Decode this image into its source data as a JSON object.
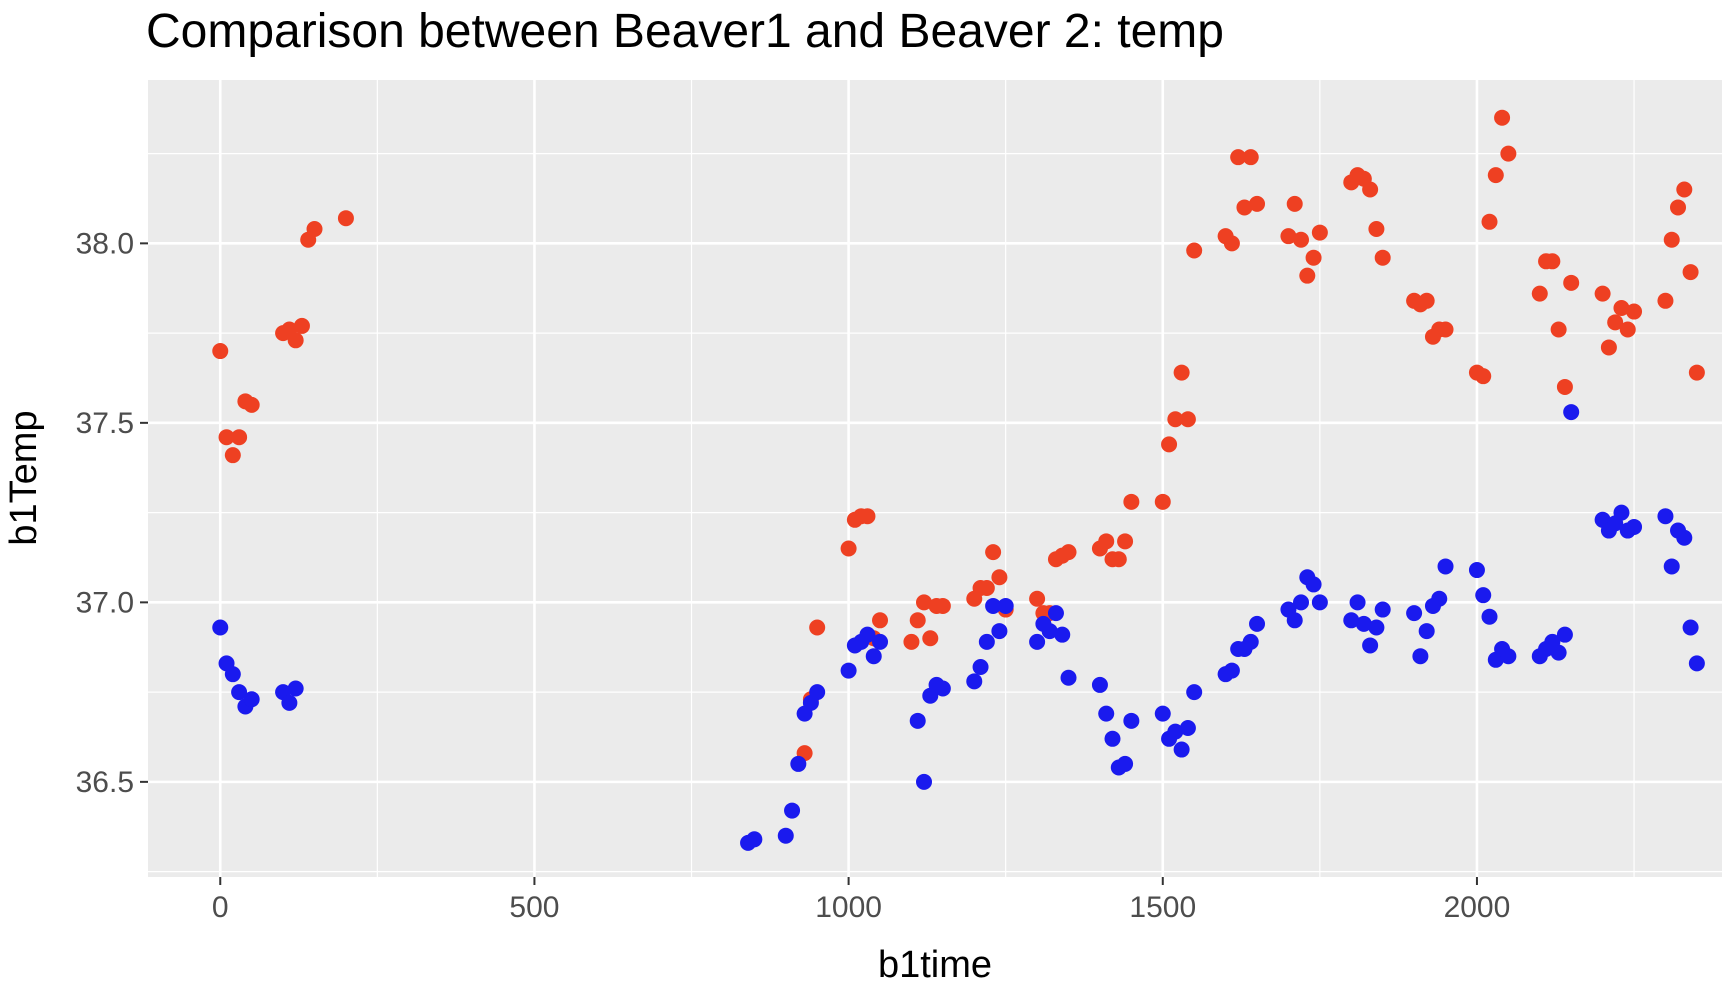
{
  "chart_data": {
    "type": "scatter",
    "title": "Comparison between Beaver1 and Beaver 2: temp",
    "xlabel": "b1time",
    "ylabel": "b1Temp",
    "xlim": [
      -115,
      2390
    ],
    "ylim": [
      36.235,
      38.455
    ],
    "x_ticks": [
      0,
      500,
      1000,
      1500,
      2000
    ],
    "x_tick_labels": [
      "0",
      "500",
      "1000",
      "1500",
      "2000"
    ],
    "y_ticks": [
      36.5,
      37.0,
      37.5,
      38.0
    ],
    "y_tick_labels": [
      "36.5",
      "37.0",
      "37.5",
      "38.0"
    ],
    "grid": true,
    "legend": "none",
    "series": [
      {
        "color": "#ee4022",
        "points": [
          [
            0,
            37.7
          ],
          [
            10,
            37.46
          ],
          [
            20,
            37.41
          ],
          [
            30,
            37.46
          ],
          [
            40,
            37.56
          ],
          [
            50,
            37.55
          ],
          [
            100,
            37.75
          ],
          [
            110,
            37.76
          ],
          [
            120,
            37.73
          ],
          [
            130,
            37.77
          ],
          [
            140,
            38.01
          ],
          [
            150,
            38.04
          ],
          [
            200,
            38.07
          ],
          [
            930,
            36.58
          ],
          [
            940,
            36.73
          ],
          [
            950,
            36.93
          ],
          [
            1000,
            37.15
          ],
          [
            1010,
            37.23
          ],
          [
            1020,
            37.24
          ],
          [
            1030,
            37.24
          ],
          [
            1040,
            36.9
          ],
          [
            1050,
            36.95
          ],
          [
            1100,
            36.89
          ],
          [
            1110,
            36.95
          ],
          [
            1120,
            37.0
          ],
          [
            1130,
            36.9
          ],
          [
            1140,
            36.99
          ],
          [
            1150,
            36.99
          ],
          [
            1200,
            37.01
          ],
          [
            1210,
            37.04
          ],
          [
            1220,
            37.04
          ],
          [
            1230,
            37.14
          ],
          [
            1240,
            37.07
          ],
          [
            1250,
            36.98
          ],
          [
            1300,
            37.01
          ],
          [
            1310,
            36.97
          ],
          [
            1320,
            36.97
          ],
          [
            1330,
            37.12
          ],
          [
            1340,
            37.13
          ],
          [
            1350,
            37.14
          ],
          [
            1400,
            37.15
          ],
          [
            1410,
            37.17
          ],
          [
            1420,
            37.12
          ],
          [
            1430,
            37.12
          ],
          [
            1440,
            37.17
          ],
          [
            1450,
            37.28
          ],
          [
            1500,
            37.28
          ],
          [
            1510,
            37.44
          ],
          [
            1520,
            37.51
          ],
          [
            1530,
            37.64
          ],
          [
            1540,
            37.51
          ],
          [
            1550,
            37.98
          ],
          [
            1600,
            38.02
          ],
          [
            1610,
            38.0
          ],
          [
            1620,
            38.24
          ],
          [
            1630,
            38.1
          ],
          [
            1640,
            38.24
          ],
          [
            1650,
            38.11
          ],
          [
            1700,
            38.02
          ],
          [
            1710,
            38.11
          ],
          [
            1720,
            38.01
          ],
          [
            1730,
            37.91
          ],
          [
            1740,
            37.96
          ],
          [
            1750,
            38.03
          ],
          [
            1800,
            38.17
          ],
          [
            1810,
            38.19
          ],
          [
            1820,
            38.18
          ],
          [
            1830,
            38.15
          ],
          [
            1840,
            38.04
          ],
          [
            1850,
            37.96
          ],
          [
            1900,
            37.84
          ],
          [
            1910,
            37.83
          ],
          [
            1920,
            37.84
          ],
          [
            1930,
            37.74
          ],
          [
            1940,
            37.76
          ],
          [
            1950,
            37.76
          ],
          [
            2000,
            37.64
          ],
          [
            2010,
            37.63
          ],
          [
            2020,
            38.06
          ],
          [
            2030,
            38.19
          ],
          [
            2040,
            38.35
          ],
          [
            2050,
            38.25
          ],
          [
            2100,
            37.86
          ],
          [
            2110,
            37.95
          ],
          [
            2120,
            37.95
          ],
          [
            2130,
            37.76
          ],
          [
            2140,
            37.6
          ],
          [
            2150,
            37.89
          ],
          [
            2200,
            37.86
          ],
          [
            2210,
            37.71
          ],
          [
            2220,
            37.78
          ],
          [
            2230,
            37.82
          ],
          [
            2240,
            37.76
          ],
          [
            2250,
            37.81
          ],
          [
            2300,
            37.84
          ],
          [
            2310,
            38.01
          ],
          [
            2320,
            38.1
          ],
          [
            2330,
            38.15
          ],
          [
            2340,
            37.92
          ],
          [
            2350,
            37.64
          ]
        ]
      },
      {
        "color": "#1a1aee",
        "points": [
          [
            0,
            36.93
          ],
          [
            10,
            36.83
          ],
          [
            20,
            36.8
          ],
          [
            30,
            36.75
          ],
          [
            40,
            36.71
          ],
          [
            50,
            36.73
          ],
          [
            100,
            36.75
          ],
          [
            110,
            36.72
          ],
          [
            120,
            36.76
          ],
          [
            840,
            36.33
          ],
          [
            850,
            36.34
          ],
          [
            900,
            36.35
          ],
          [
            910,
            36.42
          ],
          [
            920,
            36.55
          ],
          [
            930,
            36.69
          ],
          [
            940,
            36.72
          ],
          [
            950,
            36.75
          ],
          [
            1000,
            36.81
          ],
          [
            1010,
            36.88
          ],
          [
            1020,
            36.89
          ],
          [
            1030,
            36.91
          ],
          [
            1040,
            36.85
          ],
          [
            1050,
            36.89
          ],
          [
            1110,
            36.67
          ],
          [
            1120,
            36.5
          ],
          [
            1130,
            36.74
          ],
          [
            1140,
            36.77
          ],
          [
            1150,
            36.76
          ],
          [
            1200,
            36.78
          ],
          [
            1210,
            36.82
          ],
          [
            1220,
            36.89
          ],
          [
            1230,
            36.99
          ],
          [
            1240,
            36.92
          ],
          [
            1250,
            36.99
          ],
          [
            1300,
            36.89
          ],
          [
            1310,
            36.94
          ],
          [
            1320,
            36.92
          ],
          [
            1330,
            36.97
          ],
          [
            1340,
            36.91
          ],
          [
            1350,
            36.79
          ],
          [
            1400,
            36.77
          ],
          [
            1410,
            36.69
          ],
          [
            1420,
            36.62
          ],
          [
            1430,
            36.54
          ],
          [
            1440,
            36.55
          ],
          [
            1450,
            36.67
          ],
          [
            1500,
            36.69
          ],
          [
            1510,
            36.62
          ],
          [
            1520,
            36.64
          ],
          [
            1530,
            36.59
          ],
          [
            1540,
            36.65
          ],
          [
            1550,
            36.75
          ],
          [
            1600,
            36.8
          ],
          [
            1610,
            36.81
          ],
          [
            1620,
            36.87
          ],
          [
            1630,
            36.87
          ],
          [
            1640,
            36.89
          ],
          [
            1650,
            36.94
          ],
          [
            1700,
            36.98
          ],
          [
            1710,
            36.95
          ],
          [
            1720,
            37.0
          ],
          [
            1730,
            37.07
          ],
          [
            1740,
            37.05
          ],
          [
            1750,
            37.0
          ],
          [
            1800,
            36.95
          ],
          [
            1810,
            37.0
          ],
          [
            1820,
            36.94
          ],
          [
            1830,
            36.88
          ],
          [
            1840,
            36.93
          ],
          [
            1850,
            36.98
          ],
          [
            1900,
            36.97
          ],
          [
            1910,
            36.85
          ],
          [
            1920,
            36.92
          ],
          [
            1930,
            36.99
          ],
          [
            1940,
            37.01
          ],
          [
            1950,
            37.1
          ],
          [
            2000,
            37.09
          ],
          [
            2010,
            37.02
          ],
          [
            2020,
            36.96
          ],
          [
            2030,
            36.84
          ],
          [
            2040,
            36.87
          ],
          [
            2050,
            36.85
          ],
          [
            2100,
            36.85
          ],
          [
            2110,
            36.87
          ],
          [
            2120,
            36.89
          ],
          [
            2130,
            36.86
          ],
          [
            2140,
            36.91
          ],
          [
            2150,
            37.53
          ],
          [
            2200,
            37.23
          ],
          [
            2210,
            37.2
          ],
          [
            2220,
            37.22
          ],
          [
            2230,
            37.25
          ],
          [
            2240,
            37.2
          ],
          [
            2250,
            37.21
          ],
          [
            2300,
            37.24
          ],
          [
            2310,
            37.1
          ],
          [
            2320,
            37.2
          ],
          [
            2330,
            37.18
          ],
          [
            2340,
            36.93
          ],
          [
            2350,
            36.83
          ]
        ]
      }
    ]
  }
}
